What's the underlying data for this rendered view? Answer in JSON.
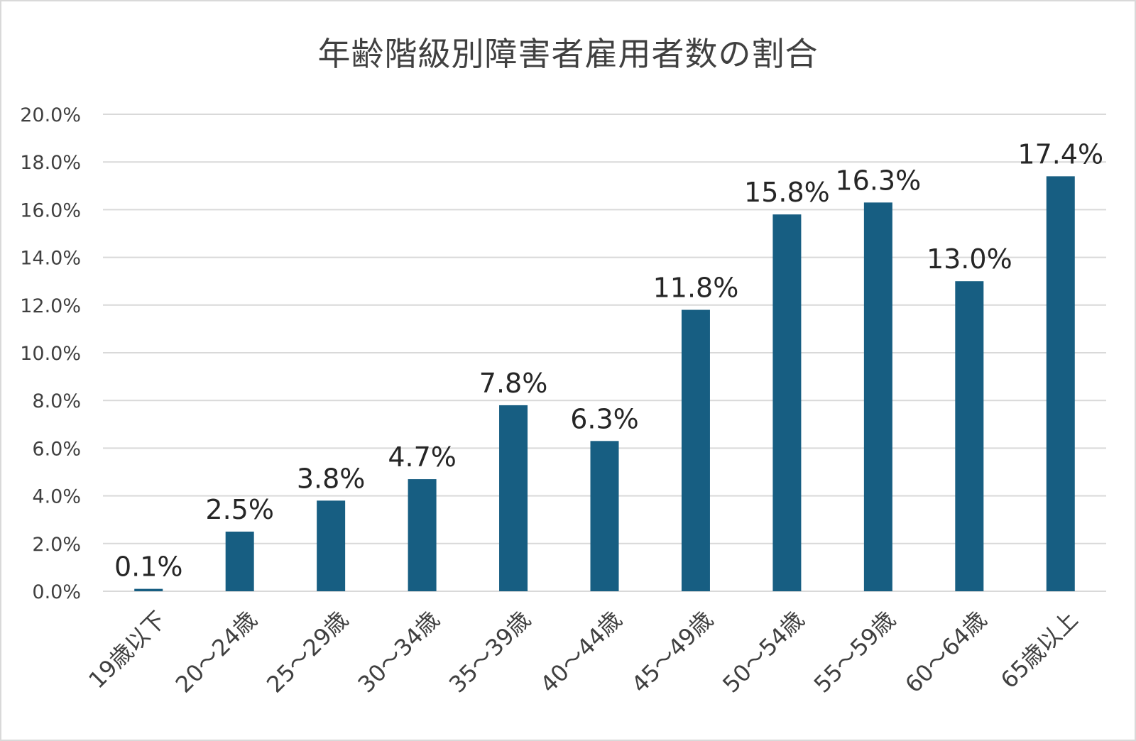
{
  "chart_data": {
    "type": "bar",
    "title": "年齢階級別障害者雇用者数の割合",
    "xlabel": "",
    "ylabel": "",
    "categories": [
      "19歳以下",
      "20～24歳",
      "25～29歳",
      "30～34歳",
      "35～39歳",
      "40～44歳",
      "45～49歳",
      "50～54歳",
      "55～59歳",
      "60～64歳",
      "65歳以上"
    ],
    "values": [
      0.1,
      2.5,
      3.8,
      4.7,
      7.8,
      6.3,
      11.8,
      15.8,
      16.3,
      13.0,
      17.4
    ],
    "data_labels": [
      "0.1%",
      "2.5%",
      "3.8%",
      "4.7%",
      "7.8%",
      "6.3%",
      "11.8%",
      "15.8%",
      "16.3%",
      "13.0%",
      "17.4%"
    ],
    "ylim": [
      0,
      20
    ],
    "yticks": [
      0,
      2,
      4,
      6,
      8,
      10,
      12,
      14,
      16,
      18,
      20
    ],
    "ytick_labels": [
      "0.0%",
      "2.0%",
      "4.0%",
      "6.0%",
      "8.0%",
      "10.0%",
      "12.0%",
      "14.0%",
      "16.0%",
      "18.0%",
      "20.0%"
    ],
    "grid": true,
    "legend": "none",
    "colors": {
      "bar": "#175e82",
      "grid": "#d9d9d9",
      "text": "#404040"
    }
  }
}
